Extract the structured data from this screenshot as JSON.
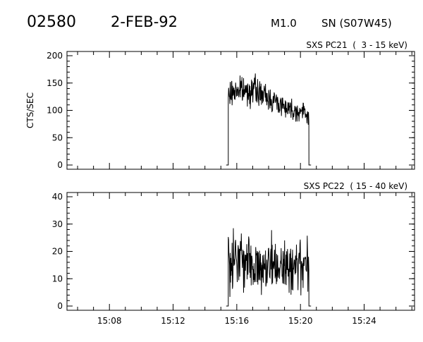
{
  "header": {
    "event_id": "02580",
    "date": "2-FEB-92",
    "goes_class": "M1.0",
    "location": "SN (S07W45)"
  },
  "colors": {
    "ink": "#000000",
    "background": "#ffffff"
  },
  "chart_data": [
    {
      "type": "line",
      "panel": "top",
      "title": "SXS PC21  (  3 - 15 keV)",
      "ylabel": "CTS/SEC",
      "xlabel": "",
      "ylim": [
        0,
        200
      ],
      "yticks": [
        "0",
        "50",
        "100",
        "150",
        "200"
      ],
      "xlim": [
        "15:05:20",
        "15:27:10"
      ],
      "xticks": [
        "15:08",
        "15:12",
        "15:16",
        "15:20",
        "15:24"
      ],
      "show_x_tick_labels": false,
      "grid": false,
      "series": [
        {
          "x": [
            "15:15:20",
            "15:15:28",
            "15:15:40",
            "15:16:00",
            "15:16:20",
            "15:16:40",
            "15:17:00",
            "15:17:20",
            "15:17:40",
            "15:18:00",
            "15:18:20",
            "15:18:40",
            "15:19:00",
            "15:19:20",
            "15:19:40",
            "15:20:00",
            "15:20:20",
            "15:20:32",
            "15:20:40"
          ],
          "values": [
            0,
            125,
            132,
            138,
            136,
            134,
            140,
            133,
            128,
            122,
            118,
            112,
            108,
            104,
            100,
            98,
            95,
            90,
            0
          ]
        }
      ]
    },
    {
      "type": "line",
      "panel": "bottom",
      "title": "SXS PC22  ( 15 - 40 keV)",
      "ylabel": "",
      "xlabel": "",
      "ylim": [
        0,
        40
      ],
      "yticks": [
        "0",
        "10",
        "20",
        "30",
        "40"
      ],
      "xlim": [
        "15:05:20",
        "15:27:10"
      ],
      "xticks": [
        "15:08",
        "15:12",
        "15:16",
        "15:20",
        "15:24"
      ],
      "show_x_tick_labels": true,
      "grid": false,
      "series": [
        {
          "x": [
            "15:15:20",
            "15:15:28",
            "15:15:40",
            "15:16:00",
            "15:16:20",
            "15:16:40",
            "15:17:00",
            "15:17:20",
            "15:17:40",
            "15:18:00",
            "15:18:20",
            "15:18:40",
            "15:19:00",
            "15:19:20",
            "15:19:40",
            "15:20:00",
            "15:20:20",
            "15:20:32",
            "15:20:40"
          ],
          "values": [
            0,
            20,
            18,
            17,
            16,
            16,
            15,
            16,
            15,
            15,
            15,
            14,
            15,
            15,
            14,
            15,
            15,
            15,
            0
          ]
        }
      ]
    }
  ]
}
